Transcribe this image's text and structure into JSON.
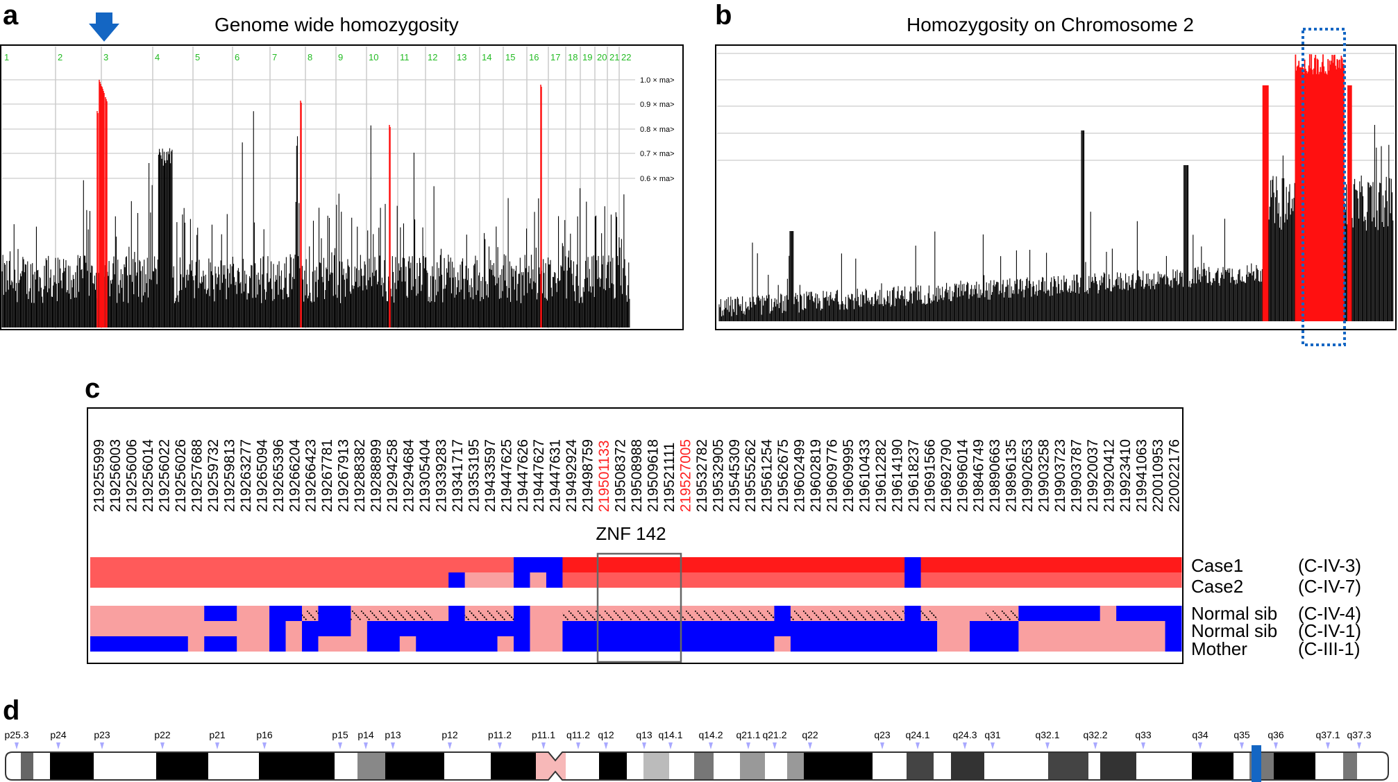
{
  "figure": {
    "panel_a": {
      "label": "a",
      "title": "Genome wide homozygosity",
      "chromosomes": [
        "1",
        "2",
        "3",
        "4",
        "5",
        "6",
        "7",
        "8",
        "9",
        "10",
        "11",
        "12",
        "13",
        "14",
        "15",
        "16",
        "17",
        "18",
        "19",
        "20",
        "21",
        "22"
      ],
      "scale_labels": [
        "1.0 × ma>",
        "0.9 × ma>",
        "0.8 × ma>",
        "0.7 × ma>",
        "0.6 × ma>"
      ],
      "arrow_color": "#1466c3",
      "highlight_color": "#ff0000"
    },
    "panel_b": {
      "label": "b",
      "title": "Homozygosity on Chromosome 2",
      "box_color": "#1466c3"
    },
    "panel_c": {
      "label": "c",
      "positions": [
        "219255999",
        "219256003",
        "219256006",
        "219256014",
        "219256022",
        "219256026",
        "219257688",
        "219259732",
        "219259813",
        "219263277",
        "219265094",
        "219265396",
        "219266204",
        "219266423",
        "219267781",
        "219267913",
        "219288382",
        "219288899",
        "219294258",
        "219294684",
        "219305404",
        "219339283",
        "219341717",
        "219353195",
        "219433597",
        "219447625",
        "219447626",
        "219447627",
        "219447631",
        "219492924",
        "219498759",
        "219501133",
        "219508372",
        "219508988",
        "219509618",
        "219521111",
        "219527005",
        "219532782",
        "219532905",
        "219545309",
        "219555262",
        "219561254",
        "219562675",
        "219602499",
        "219602819",
        "219609776",
        "219609995",
        "219610433",
        "219612282",
        "219614190",
        "219618237",
        "219691566",
        "219692790",
        "219696014",
        "219846749",
        "219890663",
        "219896135",
        "219902653",
        "219903258",
        "219903723",
        "219903787",
        "219920037",
        "219920412",
        "219923410",
        "219941063",
        "220010953",
        "220022176"
      ],
      "highlight_positions": [
        "219501133",
        "219527005"
      ],
      "gene_label": "ZNF 142",
      "rows": [
        {
          "name": "Case1",
          "id": "(C-IV-3)"
        },
        {
          "name": "Case2",
          "id": "(C-IV-7)"
        },
        {
          "name": "Normal sib",
          "id": "(C-IV-4)"
        },
        {
          "name": "Normal sib",
          "id": "(C-IV-1)"
        },
        {
          "name": "Mother",
          "id": "(C-III-1)"
        }
      ],
      "colors": {
        "homozygous": "#ff5a5a",
        "homozygous_strong": "#ff1a1a",
        "heterozygous": "#0000ff",
        "light": "#f9a0a0"
      }
    },
    "panel_d": {
      "label": "d",
      "bands": [
        "p25.3",
        "p24",
        "p23",
        "p22",
        "p21",
        "p16",
        "p15",
        "p14",
        "p13",
        "p12",
        "p11.2",
        "p11.1",
        "q11.2",
        "q12",
        "q13",
        "q14.1",
        "q14.2",
        "q21.1",
        "q21.2",
        "q22",
        "q23",
        "q24.1",
        "q24.3",
        "q31",
        "q32.1",
        "q32.2",
        "q33",
        "q34",
        "q35",
        "q36",
        "q37.1",
        "q37.3"
      ],
      "marker_color": "#1466c3"
    }
  }
}
